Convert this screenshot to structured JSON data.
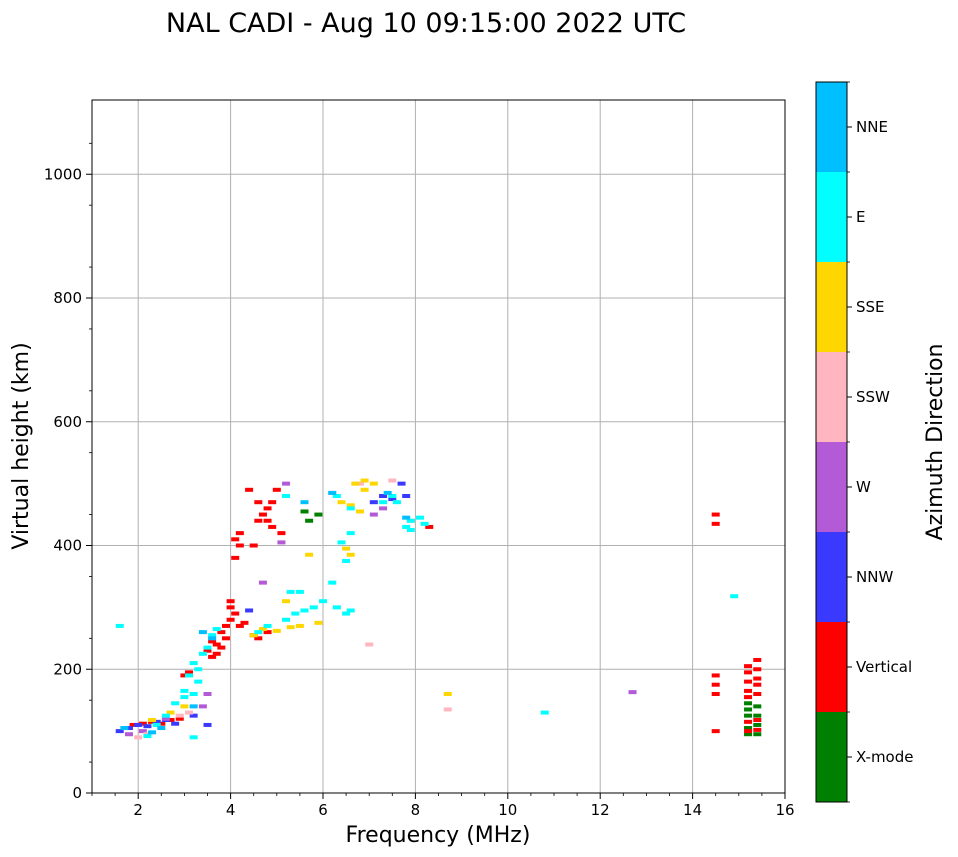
{
  "chart_data": {
    "type": "scatter",
    "title": "NAL CADI - Aug 10 09:15:00 2022 UTC",
    "xlabel": "Frequency (MHz)",
    "ylabel": "Virtual height (km)",
    "xlim": [
      1,
      16
    ],
    "ylim": [
      0,
      1120
    ],
    "xticks": [
      2,
      4,
      6,
      8,
      10,
      12,
      14,
      16
    ],
    "yticks": [
      0,
      200,
      400,
      600,
      800,
      1000
    ],
    "grid": true,
    "colorbar": {
      "label": "Azimuth Direction",
      "categories": [
        "X-mode",
        "Vertical",
        "NNW",
        "W",
        "SSW",
        "SSE",
        "E",
        "NNE"
      ],
      "colors": [
        "#008000",
        "#ff0000",
        "#3a3aff",
        "#b35ad6",
        "#ffb6c1",
        "#ffd700",
        "#00ffff",
        "#00bfff"
      ]
    },
    "series": [
      {
        "name": "X-mode",
        "points": [
          [
            15.2,
            95
          ],
          [
            15.4,
            95
          ],
          [
            15.2,
            105
          ],
          [
            15.4,
            110
          ],
          [
            15.2,
            125
          ],
          [
            15.4,
            125
          ],
          [
            15.2,
            135
          ],
          [
            15.4,
            140
          ],
          [
            15.2,
            145
          ],
          [
            5.7,
            440
          ],
          [
            5.9,
            450
          ],
          [
            5.6,
            455
          ]
        ]
      },
      {
        "name": "Vertical",
        "points": [
          [
            1.9,
            110
          ],
          [
            2.1,
            112
          ],
          [
            2.3,
            115
          ],
          [
            2.5,
            112
          ],
          [
            2.7,
            118
          ],
          [
            2.9,
            120
          ],
          [
            3.0,
            190
          ],
          [
            3.1,
            195
          ],
          [
            3.5,
            230
          ],
          [
            3.6,
            220
          ],
          [
            3.7,
            240
          ],
          [
            3.8,
            235
          ],
          [
            3.9,
            250
          ],
          [
            3.7,
            225
          ],
          [
            3.6,
            245
          ],
          [
            3.8,
            260
          ],
          [
            3.9,
            270
          ],
          [
            4.0,
            280
          ],
          [
            4.1,
            290
          ],
          [
            4.0,
            300
          ],
          [
            4.0,
            310
          ],
          [
            4.2,
            270
          ],
          [
            4.3,
            275
          ],
          [
            4.6,
            250
          ],
          [
            4.5,
            255
          ],
          [
            4.8,
            260
          ],
          [
            4.1,
            380
          ],
          [
            4.2,
            400
          ],
          [
            4.1,
            410
          ],
          [
            4.2,
            420
          ],
          [
            4.5,
            400
          ],
          [
            4.6,
            440
          ],
          [
            4.7,
            450
          ],
          [
            4.8,
            460
          ],
          [
            4.9,
            470
          ],
          [
            4.4,
            490
          ],
          [
            4.6,
            470
          ],
          [
            5.0,
            490
          ],
          [
            4.9,
            430
          ],
          [
            4.8,
            440
          ],
          [
            5.1,
            420
          ],
          [
            8.3,
            430
          ],
          [
            14.5,
            100
          ],
          [
            14.5,
            160
          ],
          [
            14.5,
            175
          ],
          [
            14.5,
            190
          ],
          [
            14.5,
            435
          ],
          [
            14.5,
            450
          ],
          [
            15.2,
            100
          ],
          [
            15.4,
            102
          ],
          [
            15.2,
            115
          ],
          [
            15.4,
            118
          ],
          [
            15.2,
            155
          ],
          [
            15.4,
            160
          ],
          [
            15.2,
            165
          ],
          [
            15.4,
            175
          ],
          [
            15.2,
            180
          ],
          [
            15.4,
            185
          ],
          [
            15.2,
            195
          ],
          [
            15.4,
            200
          ],
          [
            15.2,
            205
          ],
          [
            15.4,
            215
          ]
        ]
      },
      {
        "name": "NNW",
        "points": [
          [
            1.6,
            100
          ],
          [
            1.8,
            105
          ],
          [
            2.0,
            110
          ],
          [
            2.2,
            108
          ],
          [
            2.4,
            115
          ],
          [
            2.6,
            118
          ],
          [
            2.8,
            112
          ],
          [
            3.2,
            125
          ],
          [
            3.5,
            110
          ],
          [
            4.4,
            295
          ],
          [
            7.1,
            470
          ],
          [
            7.3,
            480
          ],
          [
            7.5,
            475
          ],
          [
            7.7,
            500
          ],
          [
            7.8,
            480
          ]
        ]
      },
      {
        "name": "W",
        "points": [
          [
            1.8,
            95
          ],
          [
            2.1,
            100
          ],
          [
            2.6,
            120
          ],
          [
            3.4,
            140
          ],
          [
            3.5,
            160
          ],
          [
            5.1,
            405
          ],
          [
            4.7,
            340
          ],
          [
            5.2,
            500
          ],
          [
            7.1,
            450
          ],
          [
            7.3,
            460
          ],
          [
            12.7,
            163
          ]
        ]
      },
      {
        "name": "SSW",
        "points": [
          [
            2.0,
            90
          ],
          [
            2.2,
            95
          ],
          [
            2.9,
            125
          ],
          [
            3.1,
            130
          ],
          [
            6.2,
            485
          ],
          [
            7.0,
            240
          ],
          [
            7.5,
            505
          ],
          [
            7.9,
            440
          ],
          [
            6.8,
            500
          ],
          [
            8.7,
            135
          ]
        ]
      },
      {
        "name": "SSE",
        "points": [
          [
            2.3,
            118
          ],
          [
            2.7,
            130
          ],
          [
            3.0,
            140
          ],
          [
            4.5,
            255
          ],
          [
            4.7,
            265
          ],
          [
            5.0,
            262
          ],
          [
            5.3,
            268
          ],
          [
            5.5,
            270
          ],
          [
            5.9,
            275
          ],
          [
            5.2,
            310
          ],
          [
            6.7,
            500
          ],
          [
            6.9,
            505
          ],
          [
            7.1,
            500
          ],
          [
            6.9,
            490
          ],
          [
            6.4,
            470
          ],
          [
            6.6,
            465
          ],
          [
            6.8,
            455
          ],
          [
            6.6,
            385
          ],
          [
            6.5,
            395
          ],
          [
            5.7,
            385
          ],
          [
            8.7,
            160
          ]
        ]
      },
      {
        "name": "E",
        "points": [
          [
            1.6,
            270
          ],
          [
            2.2,
            92
          ],
          [
            2.6,
            125
          ],
          [
            2.8,
            145
          ],
          [
            3.0,
            155
          ],
          [
            3.2,
            160
          ],
          [
            3.1,
            190
          ],
          [
            3.3,
            200
          ],
          [
            3.2,
            210
          ],
          [
            3.4,
            225
          ],
          [
            3.5,
            235
          ],
          [
            3.6,
            255
          ],
          [
            3.7,
            265
          ],
          [
            3.3,
            180
          ],
          [
            4.6,
            260
          ],
          [
            4.8,
            270
          ],
          [
            5.2,
            280
          ],
          [
            5.4,
            290
          ],
          [
            5.6,
            295
          ],
          [
            5.8,
            300
          ],
          [
            6.0,
            310
          ],
          [
            6.3,
            300
          ],
          [
            6.5,
            290
          ],
          [
            6.6,
            295
          ],
          [
            6.2,
            340
          ],
          [
            6.4,
            405
          ],
          [
            6.6,
            420
          ],
          [
            6.5,
            375
          ],
          [
            6.3,
            480
          ],
          [
            6.6,
            460
          ],
          [
            7.3,
            470
          ],
          [
            7.5,
            480
          ],
          [
            7.6,
            470
          ],
          [
            7.9,
            440
          ],
          [
            8.1,
            445
          ],
          [
            7.8,
            430
          ],
          [
            7.9,
            425
          ],
          [
            8.2,
            435
          ],
          [
            5.2,
            480
          ],
          [
            5.3,
            325
          ],
          [
            5.5,
            325
          ],
          [
            3.2,
            90
          ],
          [
            3.0,
            165
          ],
          [
            2.4,
            110
          ],
          [
            10.8,
            130
          ],
          [
            14.9,
            318
          ]
        ]
      },
      {
        "name": "NNE",
        "points": [
          [
            1.7,
            105
          ],
          [
            2.3,
            98
          ],
          [
            2.5,
            105
          ],
          [
            3.4,
            260
          ],
          [
            3.6,
            250
          ],
          [
            3.2,
            140
          ],
          [
            5.6,
            470
          ],
          [
            6.2,
            485
          ],
          [
            7.4,
            485
          ],
          [
            7.8,
            445
          ]
        ]
      }
    ]
  }
}
